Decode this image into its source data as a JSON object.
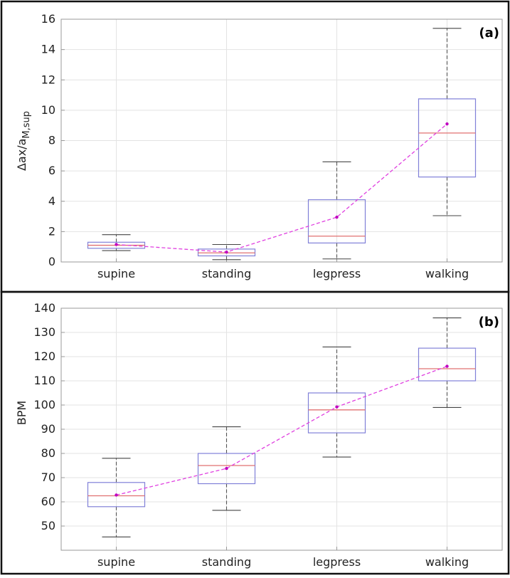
{
  "chart_data": [
    {
      "type": "box",
      "panel_label": "(a)",
      "ylabel_main": "Δax/a",
      "ylabel_sub": "M,sup",
      "categories": [
        "supine",
        "standing",
        "legpress",
        "walking"
      ],
      "ylim": [
        0,
        16
      ],
      "yticks": [
        0,
        2,
        4,
        6,
        8,
        10,
        12,
        14,
        16
      ],
      "grid": true,
      "boxes": [
        {
          "whisker_low": 0.75,
          "q1": 0.9,
          "median": 1.1,
          "q3": 1.3,
          "whisker_high": 1.8,
          "mean": 1.15
        },
        {
          "whisker_low": 0.15,
          "q1": 0.4,
          "median": 0.6,
          "q3": 0.85,
          "whisker_high": 1.15,
          "mean": 0.65
        },
        {
          "whisker_low": 0.2,
          "q1": 1.25,
          "median": 1.7,
          "q3": 4.1,
          "whisker_high": 6.6,
          "mean": 2.95
        },
        {
          "whisker_low": 3.05,
          "q1": 5.6,
          "median": 8.5,
          "q3": 10.75,
          "whisker_high": 15.4,
          "mean": 9.1
        }
      ]
    },
    {
      "type": "box",
      "panel_label": "(b)",
      "ylabel_main": "BPM",
      "ylabel_sub": "",
      "categories": [
        "supine",
        "standing",
        "legpress",
        "walking"
      ],
      "ylim": [
        40,
        140
      ],
      "yticks": [
        50,
        60,
        70,
        80,
        90,
        100,
        110,
        120,
        130,
        140
      ],
      "grid": true,
      "boxes": [
        {
          "whisker_low": 45.5,
          "q1": 58,
          "median": 62.5,
          "q3": 68,
          "whisker_high": 78,
          "mean": 62.8
        },
        {
          "whisker_low": 56.5,
          "q1": 67.5,
          "median": 75,
          "q3": 80,
          "whisker_high": 91,
          "mean": 73.8
        },
        {
          "whisker_low": 78.5,
          "q1": 88.5,
          "median": 98,
          "q3": 105,
          "whisker_high": 124,
          "mean": 99.2
        },
        {
          "whisker_low": 99,
          "q1": 110,
          "median": 115,
          "q3": 123.5,
          "whisker_high": 136,
          "mean": 116
        }
      ]
    }
  ]
}
